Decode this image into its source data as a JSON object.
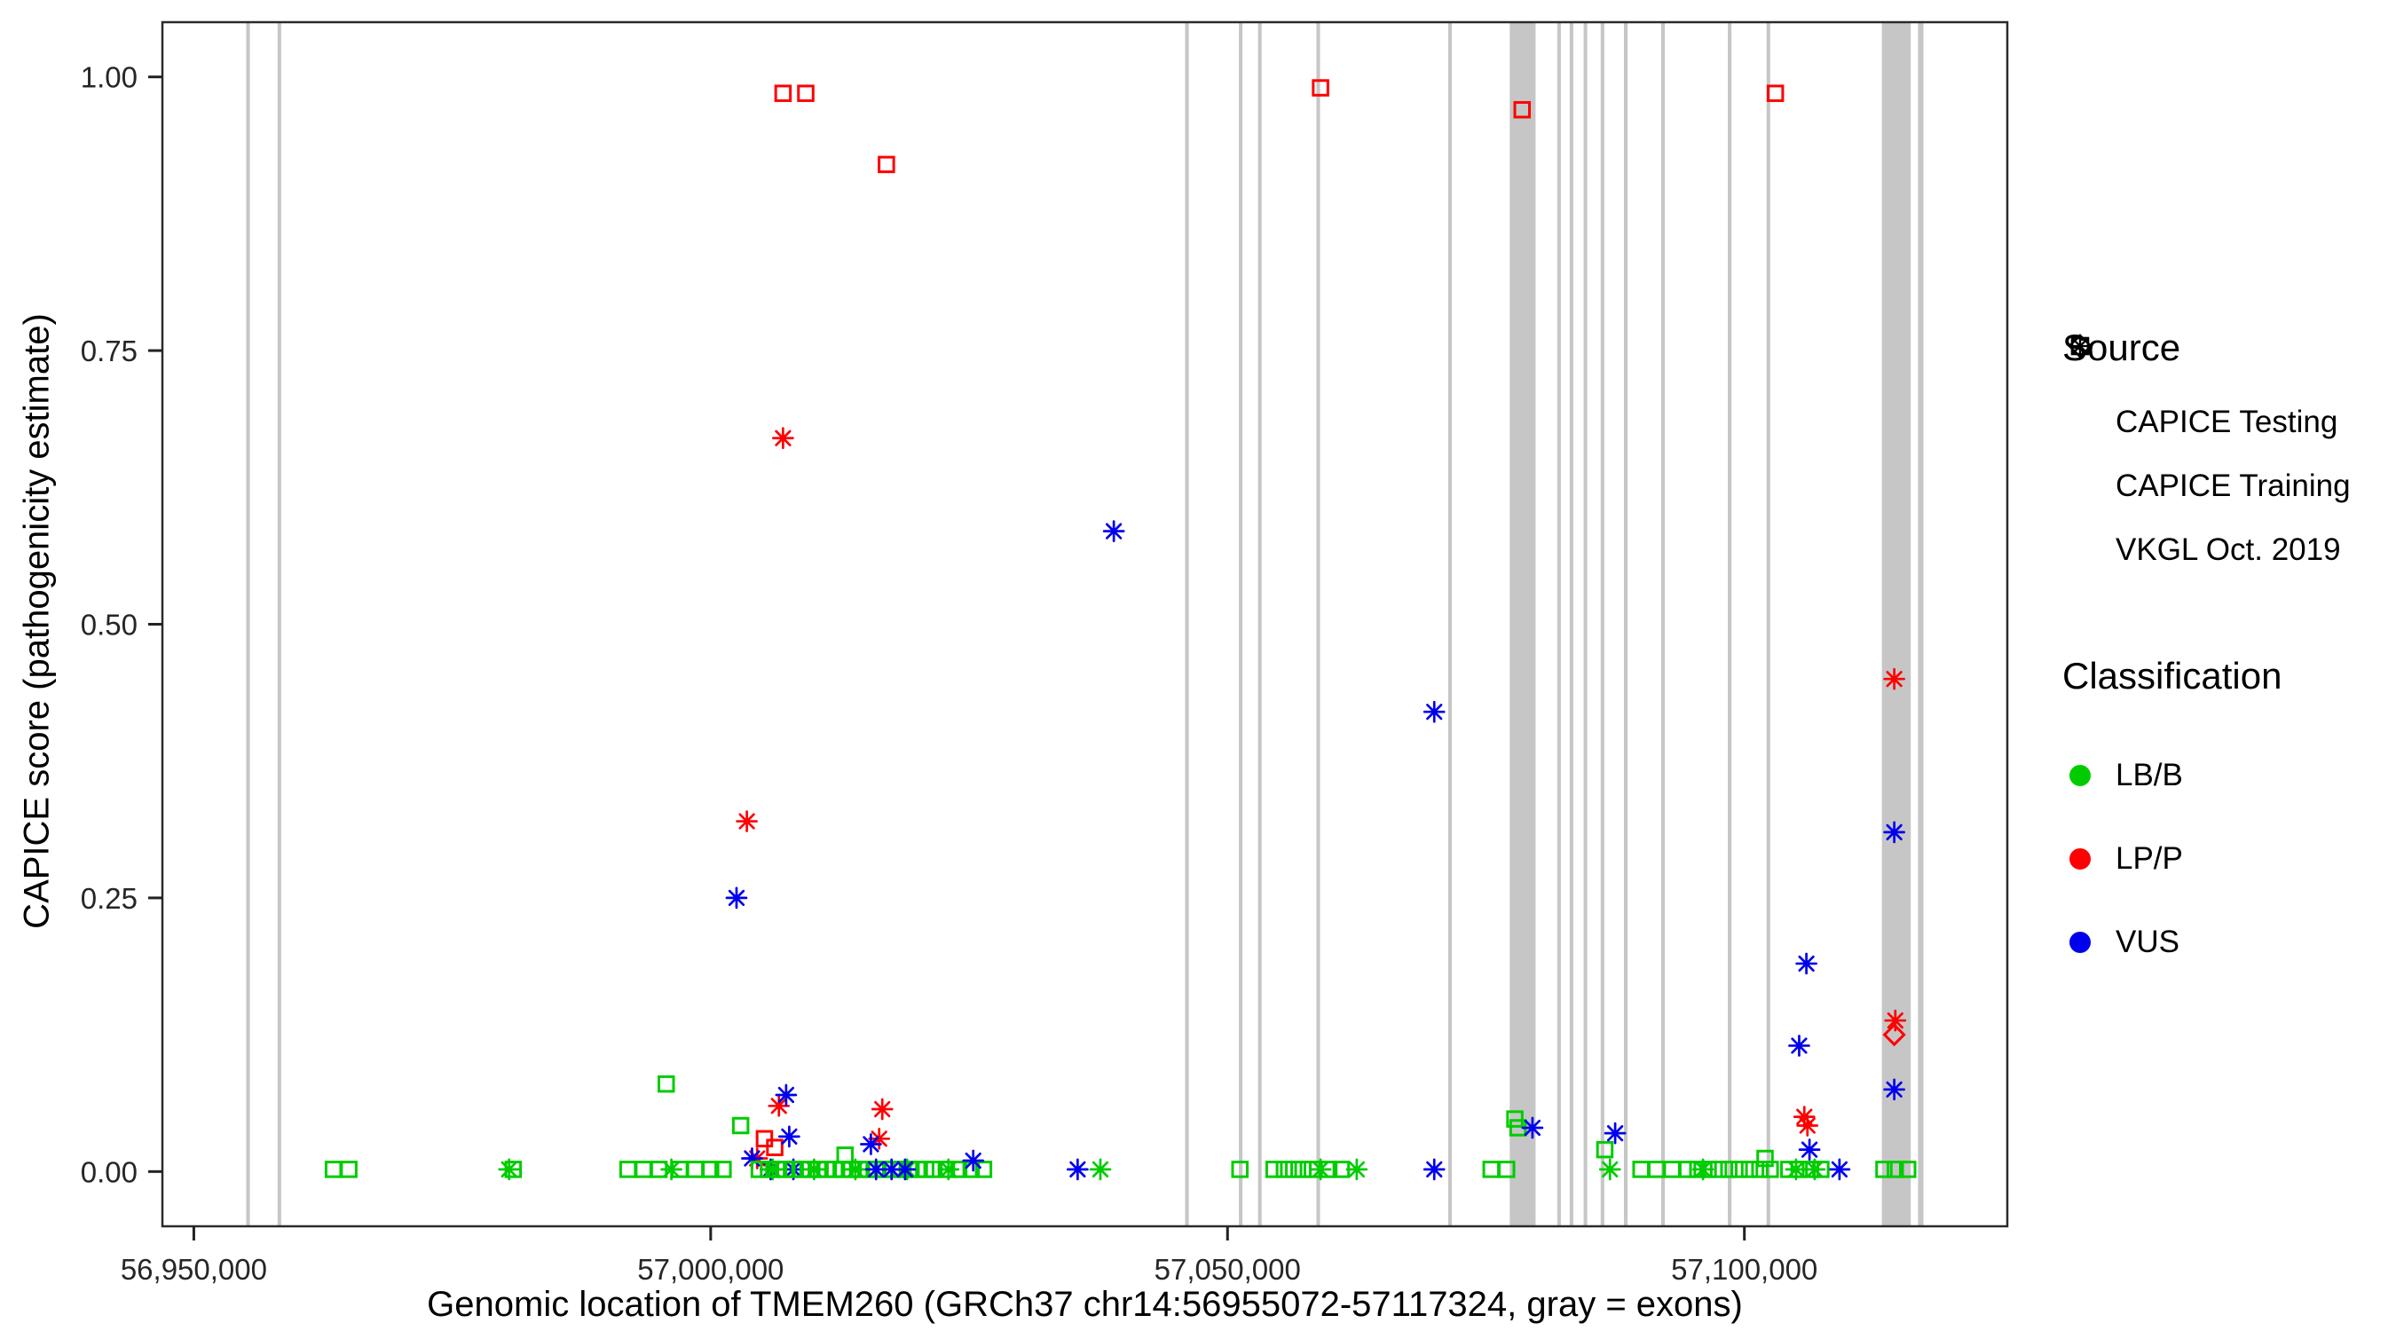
{
  "axes": {
    "x_label": "Genomic location of TMEM260 (GRCh37 chr14:56955072-57117324, gray = exons)",
    "y_label": "CAPICE score (pathogenicity estimate)",
    "x_ticks": [
      {
        "value": 56950000,
        "label": "56,950,000"
      },
      {
        "value": 57000000,
        "label": "57,000,000"
      },
      {
        "value": 57050000,
        "label": "57,050,000"
      },
      {
        "value": 57100000,
        "label": "57,100,000"
      }
    ],
    "y_ticks": [
      {
        "value": 0.0,
        "label": "0.00"
      },
      {
        "value": 0.25,
        "label": "0.25"
      },
      {
        "value": 0.5,
        "label": "0.50"
      },
      {
        "value": 0.75,
        "label": "0.75"
      },
      {
        "value": 1.0,
        "label": "1.00"
      }
    ]
  },
  "legend": {
    "source": {
      "title": "Source",
      "items": [
        {
          "label": "CAPICE Testing",
          "marker": "diamond"
        },
        {
          "label": "CAPICE Training",
          "marker": "square"
        },
        {
          "label": "VKGL Oct. 2019",
          "marker": "asterisk"
        }
      ]
    },
    "classification": {
      "title": "Classification",
      "items": [
        {
          "label": "LB/B",
          "color": "#00CC00"
        },
        {
          "label": "LP/P",
          "color": "#FF0000"
        },
        {
          "label": "VUS",
          "color": "#0000EE"
        }
      ]
    }
  },
  "chart_data": {
    "type": "scatter",
    "title": "",
    "xlabel": "Genomic location of TMEM260 (GRCh37 chr14:56955072-57117324, gray = exons)",
    "ylabel": "CAPICE score (pathogenicity estimate)",
    "x_domain": [
      56946959,
      57125437
    ],
    "y_domain": [
      -0.05,
      1.05
    ],
    "grid": false,
    "legend_position": "right",
    "exon_color": "#C6C6C6",
    "exons": [
      [
        56955072,
        56955420
      ],
      [
        56958100,
        56958450
      ],
      [
        57045900,
        57046250
      ],
      [
        57051100,
        57051450
      ],
      [
        57052950,
        57053300
      ],
      [
        57058600,
        57058950
      ],
      [
        57071350,
        57071700
      ],
      [
        57077300,
        57079800
      ],
      [
        57081900,
        57082250
      ],
      [
        57083100,
        57083450
      ],
      [
        57084450,
        57084800
      ],
      [
        57086100,
        57086450
      ],
      [
        57088350,
        57088700
      ],
      [
        57091950,
        57092300
      ],
      [
        57098400,
        57098750
      ],
      [
        57102150,
        57102500
      ],
      [
        57113300,
        57116100
      ],
      [
        57116800,
        57117324
      ]
    ],
    "colors": {
      "LB/B": "#00CC00",
      "LP/P": "#FF0000",
      "VUS": "#0000EE"
    },
    "source_codes": {
      "D": "CAPICE Testing",
      "T": "CAPICE Training",
      "V": "VKGL Oct. 2019"
    },
    "class_codes": {
      "G": "LB/B",
      "R": "LP/P",
      "B": "VUS"
    },
    "markers": {
      "CAPICE Testing": "diamond",
      "CAPICE Training": "square",
      "VKGL Oct. 2019": "asterisk"
    },
    "points": [
      [
        57007000,
        0.985,
        "T",
        "R"
      ],
      [
        57009200,
        0.985,
        "T",
        "R"
      ],
      [
        57017000,
        0.92,
        "T",
        "R"
      ],
      [
        57059000,
        0.99,
        "T",
        "R"
      ],
      [
        57078500,
        0.97,
        "T",
        "R"
      ],
      [
        57103000,
        0.985,
        "T",
        "R"
      ],
      [
        57007000,
        0.67,
        "V",
        "R"
      ],
      [
        57003500,
        0.32,
        "V",
        "R"
      ],
      [
        57114500,
        0.45,
        "V",
        "R"
      ],
      [
        57039000,
        0.585,
        "V",
        "B"
      ],
      [
        57070000,
        0.42,
        "V",
        "B"
      ],
      [
        57002500,
        0.25,
        "V",
        "B"
      ],
      [
        57114500,
        0.31,
        "V",
        "B"
      ],
      [
        57106000,
        0.19,
        "V",
        "B"
      ],
      [
        57105300,
        0.115,
        "V",
        "B"
      ],
      [
        57114500,
        0.075,
        "V",
        "B"
      ],
      [
        57114500,
        0.125,
        "D",
        "R"
      ],
      [
        57114600,
        0.138,
        "V",
        "R"
      ],
      [
        56963500,
        0.002,
        "T",
        "G"
      ],
      [
        56965000,
        0.002,
        "T",
        "G"
      ],
      [
        56980500,
        0.002,
        "V",
        "G"
      ],
      [
        56980900,
        0.002,
        "T",
        "G"
      ],
      [
        56992000,
        0.002,
        "T",
        "G"
      ],
      [
        56993500,
        0.002,
        "T",
        "G"
      ],
      [
        56995000,
        0.002,
        "T",
        "G"
      ],
      [
        56995700,
        0.08,
        "T",
        "G"
      ],
      [
        56996200,
        0.002,
        "V",
        "G"
      ],
      [
        56997000,
        0.002,
        "T",
        "G"
      ],
      [
        56998500,
        0.002,
        "T",
        "G"
      ],
      [
        57000000,
        0.002,
        "T",
        "G"
      ],
      [
        57001200,
        0.002,
        "T",
        "G"
      ],
      [
        57002900,
        0.042,
        "T",
        "G"
      ],
      [
        57004500,
        0.012,
        "V",
        "R"
      ],
      [
        57005200,
        0.03,
        "T",
        "R"
      ],
      [
        57006200,
        0.022,
        "T",
        "R"
      ],
      [
        57006600,
        0.06,
        "V",
        "R"
      ],
      [
        57007300,
        0.07,
        "V",
        "B"
      ],
      [
        57007600,
        0.032,
        "V",
        "B"
      ],
      [
        57004000,
        0.012,
        "V",
        "B"
      ],
      [
        57005800,
        0.002,
        "V",
        "B"
      ],
      [
        57008000,
        0.002,
        "V",
        "B"
      ],
      [
        57004700,
        0.002,
        "T",
        "G"
      ],
      [
        57005600,
        0.002,
        "T",
        "G"
      ],
      [
        57006400,
        0.002,
        "T",
        "G"
      ],
      [
        57007200,
        0.002,
        "T",
        "G"
      ],
      [
        57008000,
        0.002,
        "T",
        "G"
      ],
      [
        57008800,
        0.002,
        "T",
        "G"
      ],
      [
        57009600,
        0.002,
        "T",
        "G"
      ],
      [
        57010400,
        0.002,
        "T",
        "G"
      ],
      [
        57011200,
        0.002,
        "T",
        "G"
      ],
      [
        57012000,
        0.002,
        "T",
        "G"
      ],
      [
        57012800,
        0.002,
        "T",
        "G"
      ],
      [
        57013600,
        0.002,
        "T",
        "G"
      ],
      [
        57014400,
        0.002,
        "T",
        "G"
      ],
      [
        57015200,
        0.002,
        "T",
        "G"
      ],
      [
        57016000,
        0.002,
        "T",
        "G"
      ],
      [
        57016800,
        0.002,
        "T",
        "G"
      ],
      [
        57017600,
        0.002,
        "T",
        "G"
      ],
      [
        57018400,
        0.002,
        "T",
        "G"
      ],
      [
        57019200,
        0.002,
        "T",
        "G"
      ],
      [
        57020000,
        0.002,
        "T",
        "G"
      ],
      [
        57020800,
        0.002,
        "T",
        "G"
      ],
      [
        57021600,
        0.002,
        "T",
        "G"
      ],
      [
        57022800,
        0.002,
        "T",
        "G"
      ],
      [
        57024000,
        0.002,
        "T",
        "G"
      ],
      [
        57025200,
        0.002,
        "T",
        "G"
      ],
      [
        57026400,
        0.002,
        "T",
        "G"
      ],
      [
        57013000,
        0.015,
        "T",
        "G"
      ],
      [
        57006000,
        0.002,
        "V",
        "G"
      ],
      [
        57010000,
        0.002,
        "V",
        "G"
      ],
      [
        57014000,
        0.002,
        "V",
        "G"
      ],
      [
        57019000,
        0.002,
        "V",
        "G"
      ],
      [
        57023000,
        0.002,
        "V",
        "G"
      ],
      [
        57016600,
        0.057,
        "V",
        "R"
      ],
      [
        57016300,
        0.03,
        "V",
        "R"
      ],
      [
        57015500,
        0.025,
        "V",
        "B"
      ],
      [
        57016000,
        0.002,
        "V",
        "B"
      ],
      [
        57017500,
        0.002,
        "V",
        "B"
      ],
      [
        57018800,
        0.002,
        "V",
        "B"
      ],
      [
        57025400,
        0.01,
        "V",
        "B"
      ],
      [
        57035500,
        0.002,
        "V",
        "B"
      ],
      [
        57037700,
        0.002,
        "V",
        "G"
      ],
      [
        57051200,
        0.002,
        "T",
        "G"
      ],
      [
        57054500,
        0.002,
        "T",
        "G"
      ],
      [
        57055500,
        0.002,
        "T",
        "G"
      ],
      [
        57056400,
        0.002,
        "T",
        "G"
      ],
      [
        57057300,
        0.002,
        "T",
        "G"
      ],
      [
        57058200,
        0.002,
        "T",
        "G"
      ],
      [
        57059800,
        0.002,
        "T",
        "G"
      ],
      [
        57061000,
        0.002,
        "T",
        "G"
      ],
      [
        57059000,
        0.002,
        "V",
        "G"
      ],
      [
        57062500,
        0.002,
        "V",
        "G"
      ],
      [
        57070000,
        0.002,
        "V",
        "B"
      ],
      [
        57075500,
        0.002,
        "T",
        "G"
      ],
      [
        57077000,
        0.002,
        "T",
        "G"
      ],
      [
        57077800,
        0.048,
        "T",
        "G"
      ],
      [
        57078100,
        0.04,
        "T",
        "G"
      ],
      [
        57079500,
        0.04,
        "V",
        "B"
      ],
      [
        57086500,
        0.02,
        "T",
        "G"
      ],
      [
        57087500,
        0.035,
        "V",
        "B"
      ],
      [
        57087000,
        0.002,
        "V",
        "G"
      ],
      [
        57090000,
        0.002,
        "T",
        "G"
      ],
      [
        57091500,
        0.002,
        "T",
        "G"
      ],
      [
        57093000,
        0.002,
        "T",
        "G"
      ],
      [
        57094500,
        0.002,
        "T",
        "G"
      ],
      [
        57095500,
        0.002,
        "T",
        "G"
      ],
      [
        57096500,
        0.002,
        "T",
        "G"
      ],
      [
        57097500,
        0.002,
        "T",
        "G"
      ],
      [
        57098500,
        0.002,
        "T",
        "G"
      ],
      [
        57099500,
        0.002,
        "T",
        "G"
      ],
      [
        57100500,
        0.002,
        "T",
        "G"
      ],
      [
        57101500,
        0.002,
        "T",
        "G"
      ],
      [
        57102500,
        0.002,
        "T",
        "G"
      ],
      [
        57102000,
        0.012,
        "T",
        "G"
      ],
      [
        57096000,
        0.002,
        "V",
        "G"
      ],
      [
        57105800,
        0.05,
        "V",
        "R"
      ],
      [
        57106100,
        0.042,
        "V",
        "R"
      ],
      [
        57106300,
        0.02,
        "V",
        "B"
      ],
      [
        57109200,
        0.002,
        "V",
        "B"
      ],
      [
        57104300,
        0.002,
        "T",
        "G"
      ],
      [
        57105300,
        0.002,
        "T",
        "G"
      ],
      [
        57106400,
        0.002,
        "T",
        "G"
      ],
      [
        57107400,
        0.002,
        "T",
        "G"
      ],
      [
        57105000,
        0.002,
        "V",
        "G"
      ],
      [
        57106800,
        0.002,
        "V",
        "G"
      ],
      [
        57113500,
        0.002,
        "T",
        "G"
      ],
      [
        57114600,
        0.002,
        "T",
        "G"
      ],
      [
        57115800,
        0.002,
        "T",
        "G"
      ]
    ]
  }
}
